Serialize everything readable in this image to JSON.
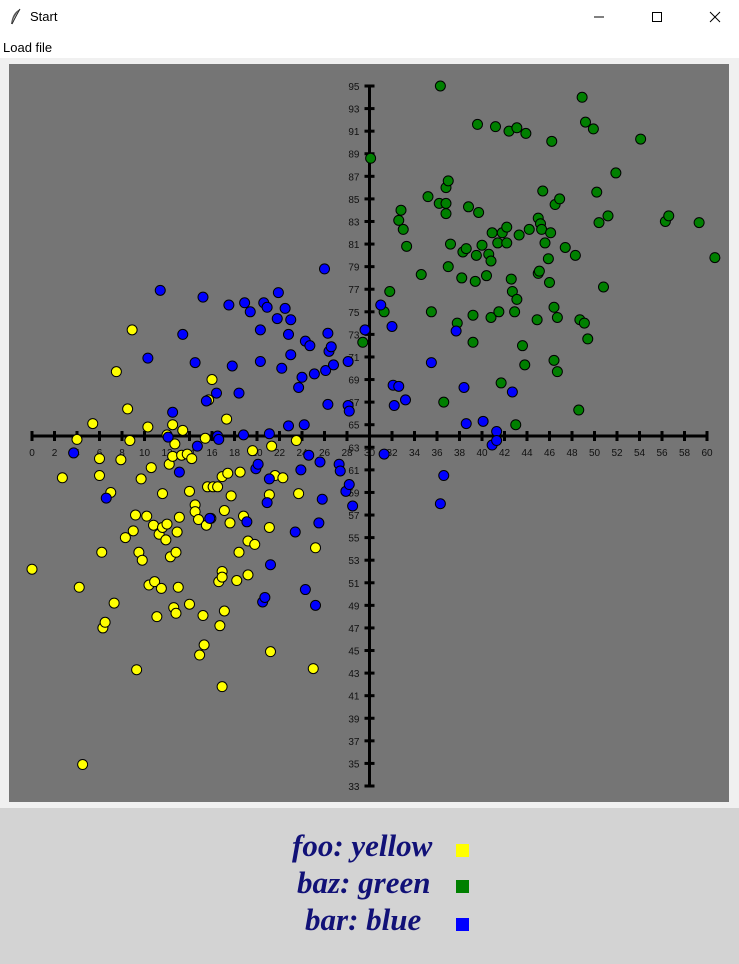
{
  "window": {
    "title": "Start",
    "icon": "feather-icon"
  },
  "menu": {
    "items": [
      "Load file"
    ]
  },
  "chart_data": {
    "type": "scatter",
    "title": "",
    "xlabel": "",
    "ylabel": "",
    "xlim": [
      0,
      60
    ],
    "ylim": [
      33,
      95
    ],
    "x_ticks": [
      0,
      2,
      4,
      6,
      8,
      10,
      12,
      14,
      16,
      18,
      20,
      22,
      24,
      26,
      28,
      30,
      32,
      34,
      36,
      38,
      40,
      42,
      44,
      46,
      48,
      50,
      52,
      54,
      56,
      58,
      60
    ],
    "y_ticks": [
      33,
      35,
      37,
      39,
      41,
      43,
      45,
      47,
      49,
      51,
      53,
      55,
      57,
      59,
      61,
      63,
      65,
      67,
      69,
      71,
      73,
      75,
      77,
      79,
      81,
      83,
      85,
      87,
      89,
      91,
      93,
      95
    ],
    "axis_cross": {
      "x": 30,
      "y": 64
    },
    "background": "#757575",
    "series": [
      {
        "color": "#ffff00",
        "points": [
          [
            0,
            52.2
          ],
          [
            2.7,
            60.3
          ],
          [
            4,
            63.7
          ],
          [
            4.2,
            50.6
          ],
          [
            4.5,
            34.9
          ],
          [
            5.4,
            65.1
          ],
          [
            6,
            62
          ],
          [
            6,
            60.5
          ],
          [
            6.2,
            53.7
          ],
          [
            6.3,
            47
          ],
          [
            6.5,
            47.5
          ],
          [
            7,
            59
          ],
          [
            7.3,
            49.2
          ],
          [
            7.5,
            69.7
          ],
          [
            7.9,
            61.9
          ],
          [
            8.3,
            55
          ],
          [
            8.5,
            66.4
          ],
          [
            8.7,
            63.6
          ],
          [
            8.9,
            73.4
          ],
          [
            9,
            55.6
          ],
          [
            9.2,
            57
          ],
          [
            9.3,
            43.3
          ],
          [
            9.5,
            53.7
          ],
          [
            9.7,
            60.2
          ],
          [
            9.8,
            53
          ],
          [
            10.2,
            56.9
          ],
          [
            10.3,
            64.8
          ],
          [
            10.4,
            50.8
          ],
          [
            10.6,
            61.2
          ],
          [
            10.8,
            56.1
          ],
          [
            10.9,
            51.1
          ],
          [
            11.1,
            48
          ],
          [
            11.3,
            55.3
          ],
          [
            11.5,
            50.5
          ],
          [
            11.6,
            58.9
          ],
          [
            11.6,
            55.9
          ],
          [
            11.9,
            54.8
          ],
          [
            12,
            64.1
          ],
          [
            12,
            56.2
          ],
          [
            12.2,
            61.5
          ],
          [
            12.3,
            53.3
          ],
          [
            12.5,
            65
          ],
          [
            12.5,
            62.2
          ],
          [
            12.6,
            48.8
          ],
          [
            12.7,
            63.3
          ],
          [
            12.8,
            53.7
          ],
          [
            12.8,
            48.3
          ],
          [
            12.9,
            55.5
          ],
          [
            13,
            50.6
          ],
          [
            13.1,
            56.8
          ],
          [
            13.3,
            62.3
          ],
          [
            13.4,
            64.5
          ],
          [
            13.8,
            62.4
          ],
          [
            14,
            59.1
          ],
          [
            14,
            49.1
          ],
          [
            14.2,
            62
          ],
          [
            14.5,
            57.9
          ],
          [
            14.5,
            57.3
          ],
          [
            14.8,
            56.6
          ],
          [
            14.9,
            44.6
          ],
          [
            15.2,
            48.1
          ],
          [
            15.3,
            45.5
          ],
          [
            15.4,
            63.8
          ],
          [
            15.5,
            56.1
          ],
          [
            15.6,
            59.5
          ],
          [
            15.7,
            67.2
          ],
          [
            15.9,
            56.7
          ],
          [
            16,
            69
          ],
          [
            16.1,
            59.5
          ],
          [
            16.5,
            59.5
          ],
          [
            16.6,
            51.1
          ],
          [
            16.7,
            47.2
          ],
          [
            16.9,
            52
          ],
          [
            16.9,
            51.5
          ],
          [
            16.9,
            60.4
          ],
          [
            16.9,
            41.8
          ],
          [
            17.1,
            48.5
          ],
          [
            17.1,
            57.4
          ],
          [
            17.3,
            65.5
          ],
          [
            17.4,
            60.7
          ],
          [
            17.6,
            56.3
          ],
          [
            17.7,
            58.7
          ],
          [
            18.2,
            51.2
          ],
          [
            18.4,
            53.7
          ],
          [
            18.5,
            60.8
          ],
          [
            18.8,
            56.9
          ],
          [
            19.2,
            54.7
          ],
          [
            19.2,
            51.7
          ],
          [
            19.6,
            62.7
          ],
          [
            19.8,
            54.4
          ],
          [
            21.1,
            58.8
          ],
          [
            21.1,
            55.9
          ],
          [
            21.2,
            44.9
          ],
          [
            21.3,
            63.1
          ],
          [
            21.6,
            60.5
          ],
          [
            22.3,
            60.3
          ],
          [
            23.5,
            63.6
          ],
          [
            23.7,
            58.9
          ],
          [
            25,
            43.4
          ],
          [
            25.2,
            54.1
          ]
        ]
      },
      {
        "color": "#008000",
        "points": [
          [
            29.4,
            72.3
          ],
          [
            30.1,
            88.6
          ],
          [
            31.8,
            76.8
          ],
          [
            31.3,
            75
          ],
          [
            32.6,
            83.1
          ],
          [
            32.8,
            84
          ],
          [
            33,
            82.3
          ],
          [
            33.3,
            80.8
          ],
          [
            34.6,
            78.3
          ],
          [
            35.2,
            85.2
          ],
          [
            35.5,
            75
          ],
          [
            36.2,
            84.6
          ],
          [
            36.3,
            95
          ],
          [
            36.6,
            67
          ],
          [
            36.8,
            84.6
          ],
          [
            36.8,
            83.7
          ],
          [
            36.8,
            86
          ],
          [
            37,
            86.6
          ],
          [
            37,
            79
          ],
          [
            37.2,
            81
          ],
          [
            37.8,
            74
          ],
          [
            38.2,
            78
          ],
          [
            38.3,
            80.3
          ],
          [
            38.6,
            80.6
          ],
          [
            38.8,
            84.3
          ],
          [
            39.2,
            74.7
          ],
          [
            39.2,
            72.3
          ],
          [
            39.4,
            77.7
          ],
          [
            39.5,
            80
          ],
          [
            39.6,
            91.6
          ],
          [
            39.7,
            83.8
          ],
          [
            40,
            80.9
          ],
          [
            40.4,
            78.2
          ],
          [
            40.6,
            80.1
          ],
          [
            40.8,
            74.5
          ],
          [
            40.8,
            79.5
          ],
          [
            40.9,
            82
          ],
          [
            41.2,
            91.4
          ],
          [
            41.4,
            81.1
          ],
          [
            41.5,
            75
          ],
          [
            41.7,
            68.7
          ],
          [
            41.8,
            82
          ],
          [
            42.2,
            82.5
          ],
          [
            42.2,
            81.1
          ],
          [
            42.4,
            91
          ],
          [
            42.6,
            77.9
          ],
          [
            42.7,
            76.8
          ],
          [
            42.9,
            75
          ],
          [
            43,
            65
          ],
          [
            43.1,
            76.1
          ],
          [
            43.1,
            91.3
          ],
          [
            43.3,
            81.8
          ],
          [
            43.6,
            72
          ],
          [
            43.8,
            70.3
          ],
          [
            43.9,
            90.8
          ],
          [
            44.2,
            82.3
          ],
          [
            44.9,
            74.3
          ],
          [
            45,
            78.4
          ],
          [
            45,
            83.3
          ],
          [
            45.1,
            78.6
          ],
          [
            45.2,
            82.8
          ],
          [
            45.3,
            82.3
          ],
          [
            45.4,
            85.7
          ],
          [
            45.6,
            81.1
          ],
          [
            45.9,
            79.7
          ],
          [
            46,
            77.6
          ],
          [
            46.1,
            82
          ],
          [
            46.2,
            90.1
          ],
          [
            46.4,
            70.7
          ],
          [
            46.4,
            75.4
          ],
          [
            46.5,
            84.5
          ],
          [
            46.7,
            69.7
          ],
          [
            46.7,
            74.5
          ],
          [
            46.9,
            85
          ],
          [
            47.4,
            80.7
          ],
          [
            48.3,
            80
          ],
          [
            48.6,
            66.3
          ],
          [
            48.7,
            74.3
          ],
          [
            48.9,
            94
          ],
          [
            49.1,
            74
          ],
          [
            49.2,
            91.8
          ],
          [
            49.4,
            72.6
          ],
          [
            49.9,
            91.2
          ],
          [
            50.2,
            85.6
          ],
          [
            50.4,
            82.9
          ],
          [
            50.8,
            77.2
          ],
          [
            51.2,
            83.5
          ],
          [
            51.9,
            87.3
          ],
          [
            54.1,
            90.3
          ],
          [
            56.3,
            83
          ],
          [
            56.6,
            83.5
          ],
          [
            59.3,
            82.9
          ],
          [
            60.7,
            79.8
          ]
        ]
      },
      {
        "color": "#0000ff",
        "points": [
          [
            3.7,
            62.5
          ],
          [
            6.6,
            58.5
          ],
          [
            10.3,
            70.9
          ],
          [
            11.4,
            76.9
          ],
          [
            12.1,
            63.9
          ],
          [
            12.5,
            66.1
          ],
          [
            13.1,
            60.8
          ],
          [
            13.4,
            73
          ],
          [
            14.5,
            70.5
          ],
          [
            14.7,
            63.1
          ],
          [
            15.2,
            76.3
          ],
          [
            15.5,
            67.1
          ],
          [
            15.8,
            56.7
          ],
          [
            16.4,
            67.8
          ],
          [
            16.5,
            64
          ],
          [
            16.6,
            63.7
          ],
          [
            17.5,
            75.6
          ],
          [
            17.8,
            70.2
          ],
          [
            18.4,
            67.8
          ],
          [
            18.8,
            64.1
          ],
          [
            18.9,
            75.8
          ],
          [
            19.1,
            56.4
          ],
          [
            19.4,
            75
          ],
          [
            19.9,
            61.1
          ],
          [
            20.1,
            61.5
          ],
          [
            20.3,
            70.6
          ],
          [
            20.3,
            73.4
          ],
          [
            20.5,
            49.3
          ],
          [
            20.6,
            75.8
          ],
          [
            20.7,
            49.7
          ],
          [
            20.9,
            75.4
          ],
          [
            20.9,
            58.1
          ],
          [
            21.1,
            60.2
          ],
          [
            21.1,
            64.2
          ],
          [
            21.2,
            52.6
          ],
          [
            21.8,
            74.4
          ],
          [
            21.9,
            76.7
          ],
          [
            22.2,
            70
          ],
          [
            22.5,
            75.3
          ],
          [
            22.8,
            73
          ],
          [
            22.8,
            64.9
          ],
          [
            23,
            71.2
          ],
          [
            23,
            74.3
          ],
          [
            23.4,
            55.5
          ],
          [
            23.7,
            68.3
          ],
          [
            23.9,
            61
          ],
          [
            24,
            69.2
          ],
          [
            24.2,
            65
          ],
          [
            24.3,
            72.4
          ],
          [
            24.3,
            50.4
          ],
          [
            24.6,
            62.3
          ],
          [
            24.7,
            72
          ],
          [
            25.1,
            69.5
          ],
          [
            25.2,
            49
          ],
          [
            25.5,
            56.3
          ],
          [
            25.6,
            61.7
          ],
          [
            25.8,
            58.4
          ],
          [
            26,
            78.8
          ],
          [
            26.1,
            69.8
          ],
          [
            26.3,
            66.8
          ],
          [
            26.3,
            73.1
          ],
          [
            26.4,
            71.5
          ],
          [
            26.6,
            71.9
          ],
          [
            26.8,
            70.3
          ],
          [
            27.3,
            61.5
          ],
          [
            27.4,
            60.9
          ],
          [
            27.9,
            59.1
          ],
          [
            28.1,
            70.6
          ],
          [
            28.1,
            66.7
          ],
          [
            28.2,
            66.2
          ],
          [
            28.2,
            59.7
          ],
          [
            28.5,
            57.8
          ],
          [
            29.6,
            73.4
          ],
          [
            31,
            75.6
          ],
          [
            31.3,
            62.4
          ],
          [
            32,
            73.7
          ],
          [
            32.1,
            68.5
          ],
          [
            32.2,
            66.7
          ],
          [
            32.6,
            68.4
          ],
          [
            33.2,
            67.2
          ],
          [
            35.5,
            70.5
          ],
          [
            36.3,
            58
          ],
          [
            36.6,
            60.5
          ],
          [
            37.7,
            73.3
          ],
          [
            38.4,
            68.3
          ],
          [
            38.6,
            65.1
          ],
          [
            40.1,
            65.3
          ],
          [
            40.9,
            63.2
          ],
          [
            41.3,
            64.4
          ],
          [
            41.3,
            63.6
          ],
          [
            42.7,
            67.9
          ]
        ]
      }
    ]
  },
  "legend": {
    "items": [
      {
        "label": "foo: yellow",
        "color": "#ffff00"
      },
      {
        "label": "baz: green",
        "color": "#008000"
      },
      {
        "label": "bar: blue",
        "color": "#0000ff"
      }
    ]
  }
}
